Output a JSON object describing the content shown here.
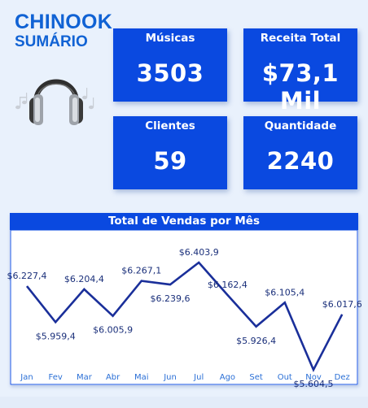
{
  "brand": {
    "line1": "CHINOOK",
    "line2": "SUMÁRIO"
  },
  "icons": {
    "headphones": "headphones-icon"
  },
  "kpis": [
    {
      "label": "Músicas",
      "value": "3503"
    },
    {
      "label": "Receita Total",
      "value": "$73,1 Mil"
    },
    {
      "label": "Clientes",
      "value": "59"
    },
    {
      "label": "Quantidade",
      "value": "2240"
    }
  ],
  "colors": {
    "accent": "#0a49e0",
    "line": "#1a2f9a",
    "background": "#e9f1fc"
  },
  "chart_data": {
    "type": "line",
    "title": "Total de Vendas por Mês",
    "categories": [
      "Jan",
      "Fev",
      "Mar",
      "Abr",
      "Mai",
      "Jun",
      "Jul",
      "Ago",
      "Set",
      "Out",
      "Nov",
      "Dez"
    ],
    "values": [
      6227.4,
      5959.4,
      6204.4,
      6005.9,
      6267.1,
      6239.6,
      6403.9,
      6162.4,
      5926.4,
      6105.4,
      5604.5,
      6017.6
    ],
    "data_labels": [
      "$6.227,4",
      "$5.959,4",
      "$6.204,4",
      "$6.005,9",
      "$6.267,1",
      "$6.239,6",
      "$6.403,9",
      "$6.162,4",
      "$5.926,4",
      "$6.105,4",
      "$5.604,5",
      "$6.017,6"
    ],
    "xlabel": "",
    "ylabel": "",
    "grid": false
  }
}
